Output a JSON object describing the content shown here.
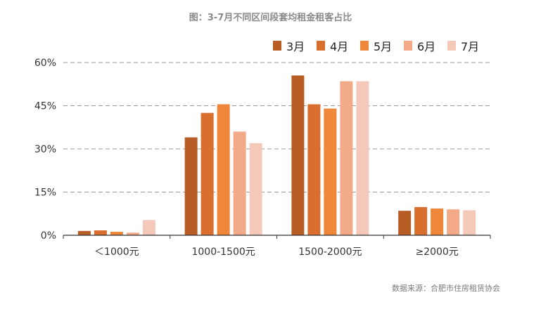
{
  "title": "图：3-7月不同区间段套均租金租客占比",
  "source": "数据来源：合肥市住房租赁协会",
  "colors": [
    "#b85d25",
    "#d96e2e",
    "#ef873a",
    "#f2aa88",
    "#f5c9b9"
  ],
  "chart_data": {
    "type": "bar",
    "title": "图：3-7月不同区间段套均租金租客占比",
    "categories": [
      "＜1000元",
      "1000-1500元",
      "1500-2000元",
      "≥2000元"
    ],
    "series": [
      {
        "name": "3月",
        "values": [
          1.5,
          34.0,
          55.5,
          8.5
        ]
      },
      {
        "name": "4月",
        "values": [
          1.7,
          42.5,
          45.5,
          9.8
        ]
      },
      {
        "name": "5月",
        "values": [
          1.2,
          45.5,
          44.0,
          9.3
        ]
      },
      {
        "name": "6月",
        "values": [
          0.9,
          36.0,
          53.5,
          9.0
        ]
      },
      {
        "name": "7月",
        "values": [
          5.3,
          32.0,
          53.5,
          8.7
        ]
      }
    ],
    "yticks": [
      "0%",
      "15%",
      "30%",
      "45%",
      "60%"
    ],
    "ytick_values": [
      0,
      15,
      30,
      45,
      60
    ],
    "ylim": [
      0,
      60
    ],
    "xlabel": "",
    "ylabel": "",
    "grid": "dashed-horizontal",
    "legend_position": "top-right"
  }
}
